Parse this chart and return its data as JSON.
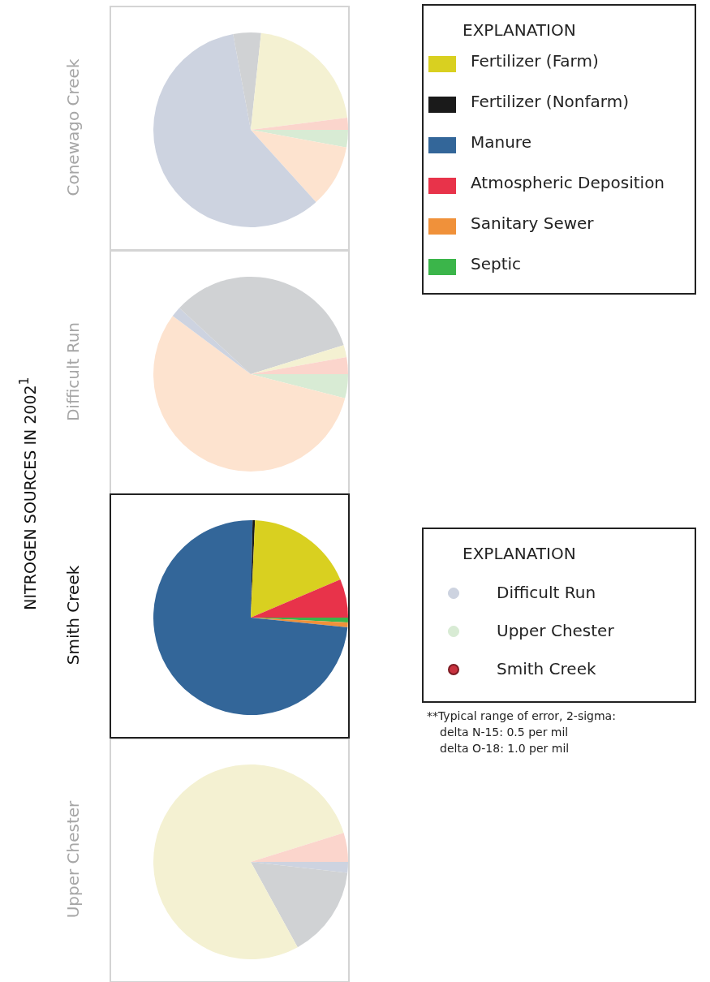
{
  "chart_data": [
    {
      "type": "pie",
      "title": "Conewago Creek",
      "ylabel": "NITROGEN SOURCES IN 2002$^{1}$",
      "categories": [
        null,
        null,
        null,
        null,
        null,
        null
      ],
      "values": [
        2.9,
        10.4,
        58.8,
        4.6,
        21.3,
        2.0
      ],
      "colors": [
        "#d8ebd4",
        "#fde3cf",
        "#cdd3e0",
        "#d0d2d4",
        "#f4f1d2",
        "#fbd5cc"
      ]
    },
    {
      "type": "pie",
      "title": "Difficult Run",
      "categories": [
        null,
        null,
        null,
        null,
        null,
        null
      ],
      "values": [
        4.0,
        56.2,
        1.7,
        33.3,
        2.0,
        2.8
      ],
      "colors": [
        "#d8ebd4",
        "#fde3cf",
        "#cdd3e0",
        "#d0d2d4",
        "#f4f1d2",
        "#fbd5cc"
      ]
    },
    {
      "type": "pie",
      "title": "Smith Creek",
      "legend": "top right",
      "legend_title": "EXPLANATION",
      "categories": [
        "Septic",
        "Sanitary Sewer",
        "Manure",
        "Fertilizer (Nonfarm)",
        "Fertilizer (Farm)",
        "Atmospheric Deposition"
      ],
      "values": [
        0.8,
        0.8,
        73.7,
        0.4,
        17.9,
        6.4
      ],
      "colors": [
        "#3bb54a",
        "#f0913a",
        "#336699",
        "#1a1a1a",
        "#d9d020",
        "#e8334a"
      ]
    },
    {
      "type": "pie",
      "title": "Upper Chester",
      "categories": [
        null,
        null,
        null,
        null,
        null,
        null
      ],
      "values": [
        0,
        0,
        1.8,
        15.2,
        78.2,
        4.8
      ],
      "colors": [
        "#d8ebd4",
        "#fde3cf",
        "#cdd3e0",
        "#d0d2d4",
        "#f4f1d2",
        "#fbd5cc"
      ]
    },
    {
      "type": "other",
      "title": "EXPLANATION",
      "annotations": [
        "Difficult Run",
        "Upper Chester",
        "Smith Creek",
        "**Typical range of error, 2-sigma:",
        "delta N-15: 0.5 per mil",
        "delta O-18: 1.0 per mil"
      ]
    }
  ]
}
